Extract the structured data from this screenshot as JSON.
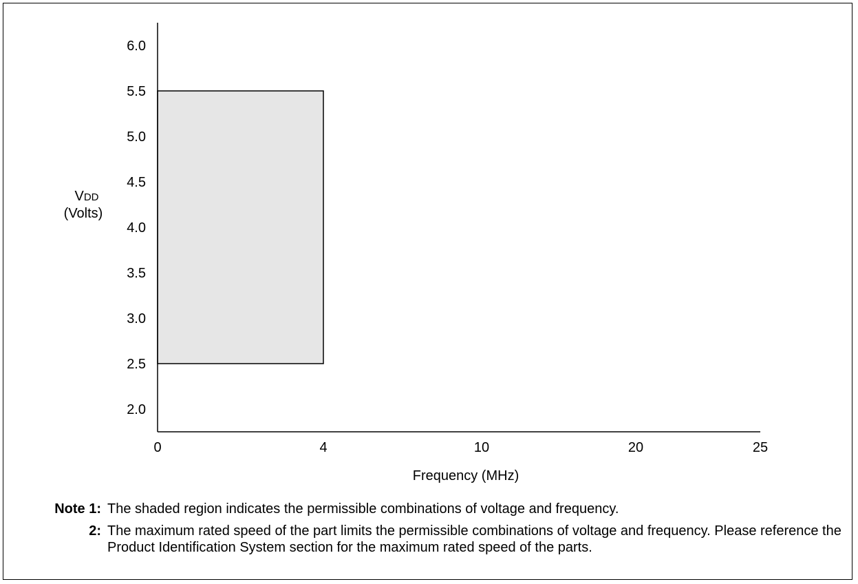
{
  "chart_data": {
    "type": "area",
    "x_ticks": [
      "0",
      "4",
      "10",
      "20",
      "25"
    ],
    "y_ticks": [
      "2.0",
      "2.5",
      "3.0",
      "3.5",
      "4.0",
      "4.5",
      "5.0",
      "5.5",
      "6.0"
    ],
    "xlabel": "Frequency (MHz)",
    "ylabel_main": "V",
    "ylabel_sub": "DD",
    "ylabel_unit": "(Volts)",
    "region": {
      "x": [
        0,
        4
      ],
      "y": [
        2.5,
        5.5
      ]
    },
    "ylim": [
      2.0,
      6.0
    ],
    "grid": false,
    "fill_color": "#e6e6e6",
    "line_color": "#000000"
  },
  "notes": [
    {
      "label": "Note 1:",
      "text": "The shaded region indicates the permissible combinations of voltage and frequency."
    },
    {
      "label": "2:",
      "text": "The maximum rated speed of the part limits the permissible combinations of voltage and frequency. Please reference the Product Identification System section for the maximum rated speed of the parts."
    }
  ]
}
